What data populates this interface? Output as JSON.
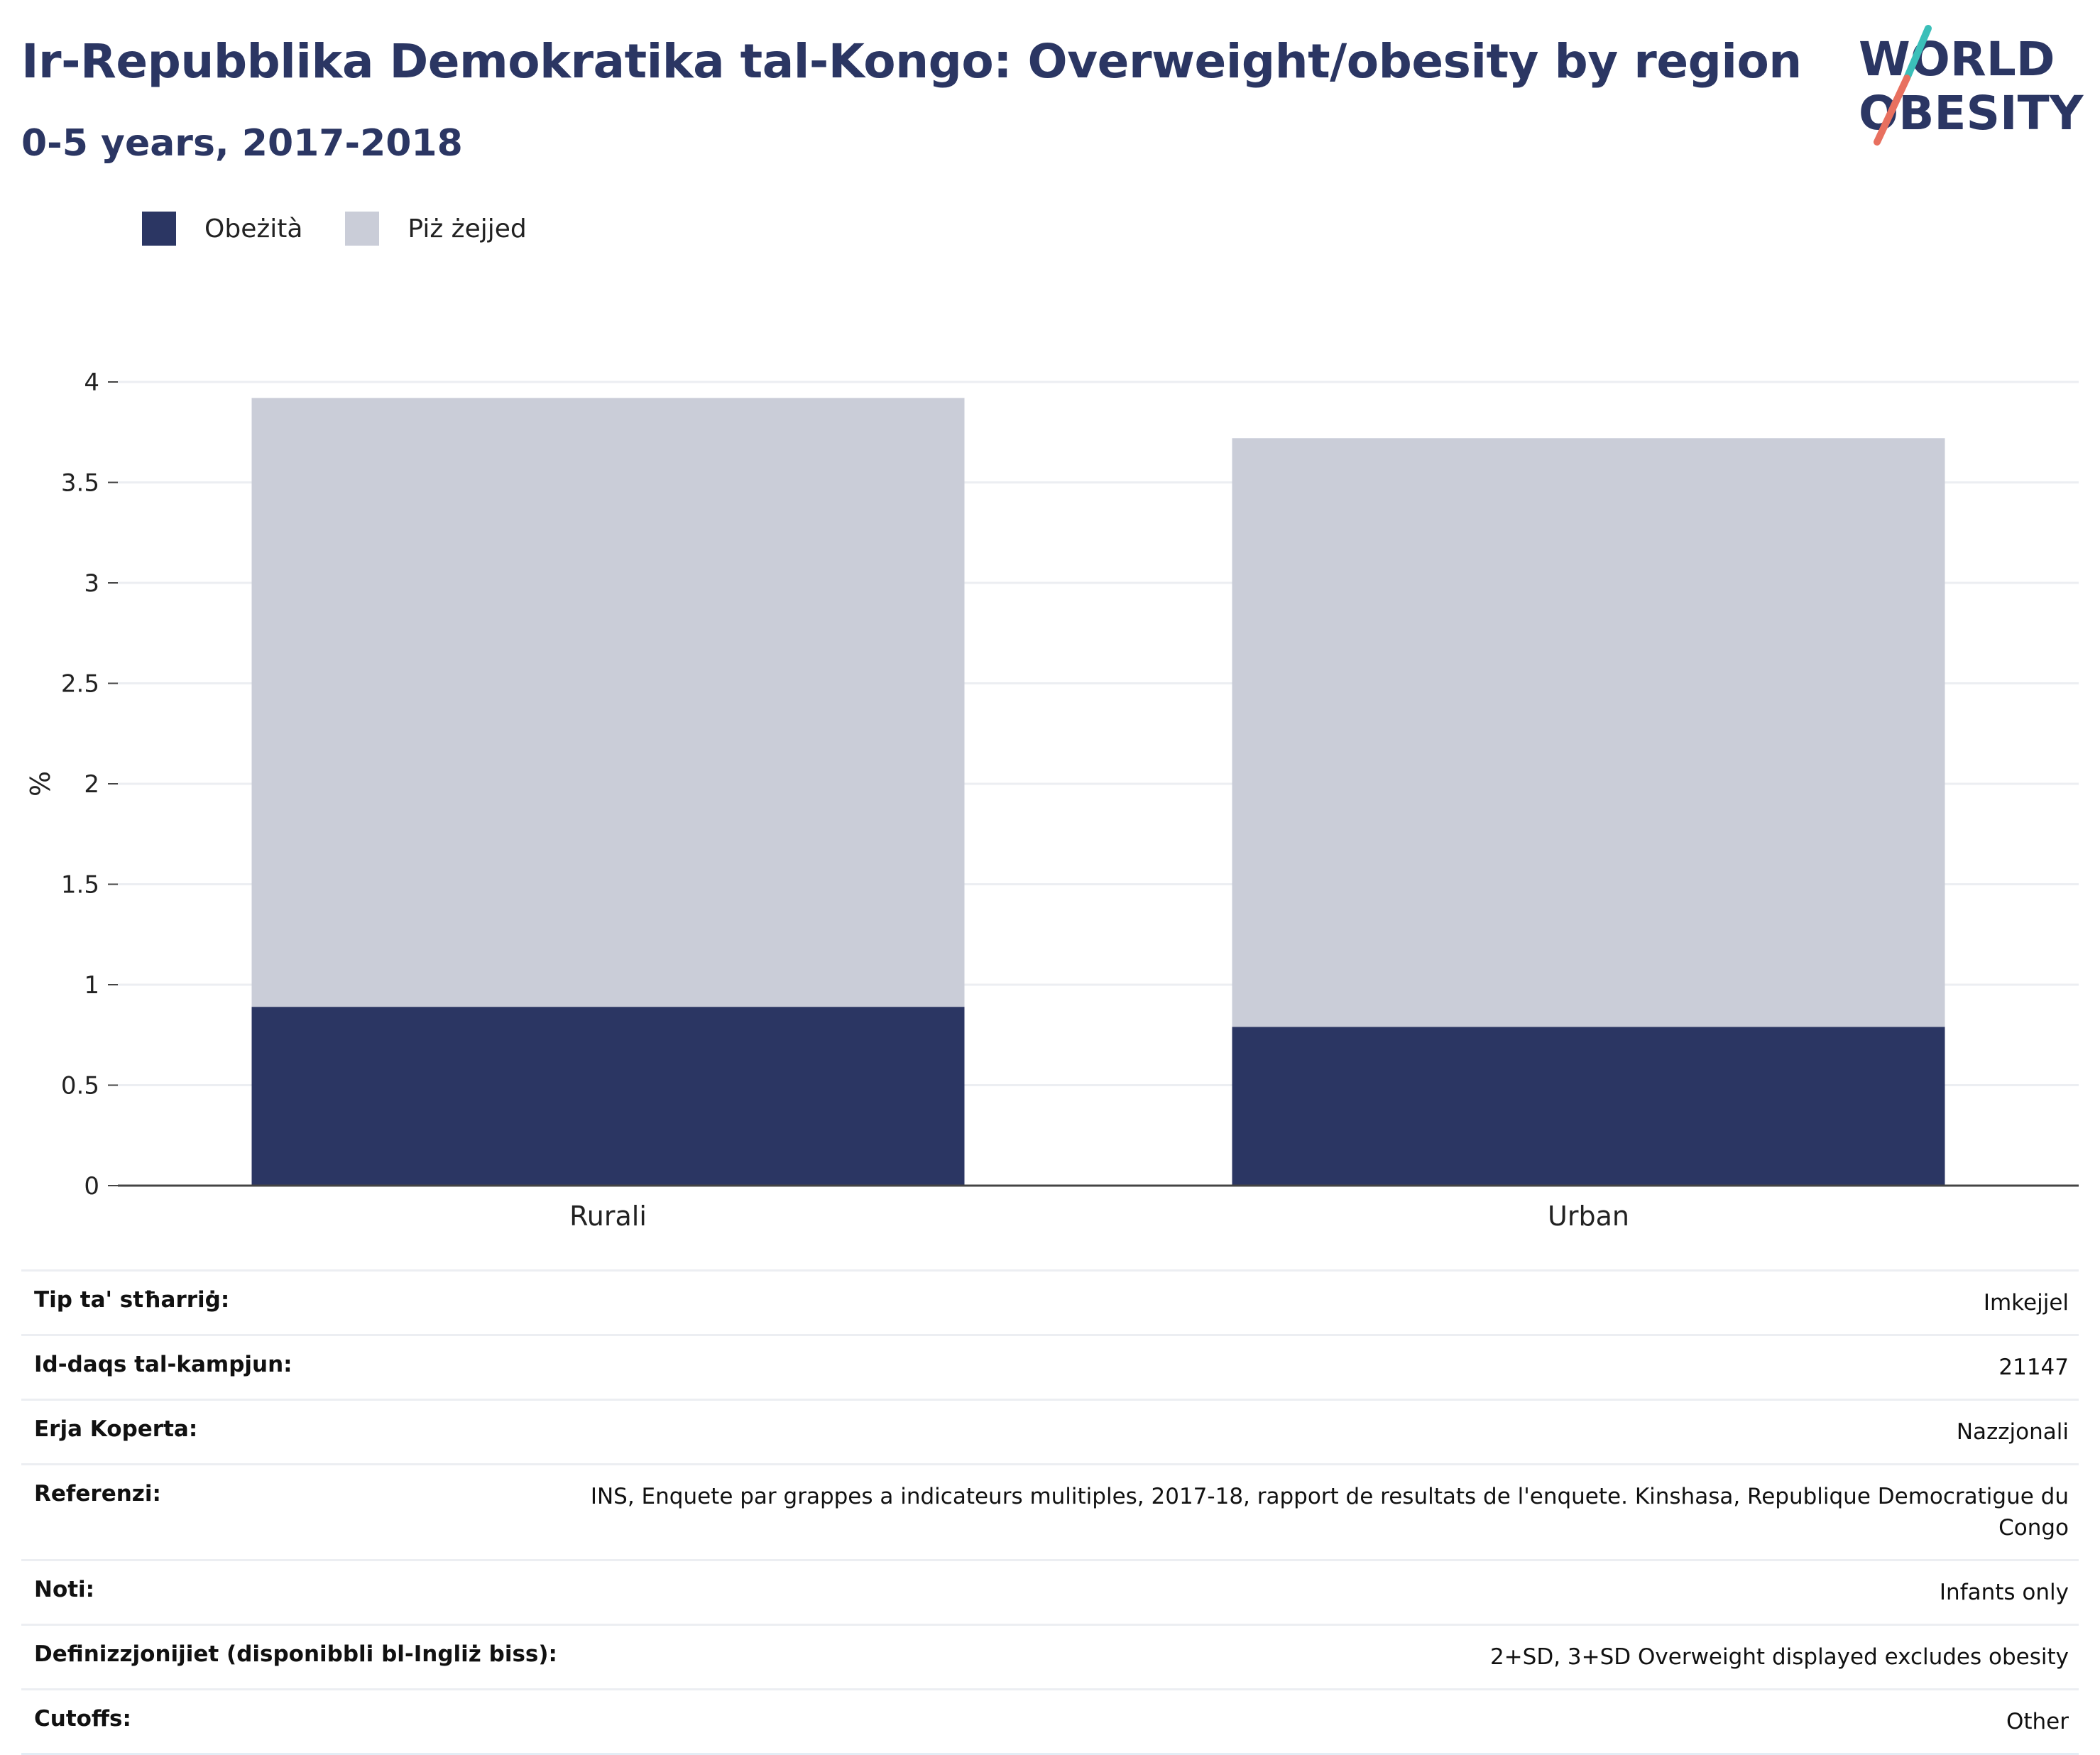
{
  "header": {
    "title": "Ir-Repubblika Demokratika tal-Kongo: Overweight/obesity by region",
    "subtitle": "0-5 years, 2017-2018"
  },
  "logo": {
    "line1": "WORLD",
    "line2": "OBESITY",
    "colors": {
      "text": "#2b3663",
      "slash_top": "#3bbfb9",
      "slash_bottom": "#e8705f"
    }
  },
  "legend": [
    {
      "label": "Obeżità",
      "color": "#2b3663"
    },
    {
      "label": "Piż żejjed",
      "color": "#cacdd8"
    }
  ],
  "chart_data": {
    "type": "bar",
    "stacked": true,
    "categories": [
      "Rurali",
      "Urban"
    ],
    "series": [
      {
        "name": "Obeżità",
        "color": "#2b3663",
        "values": [
          0.89,
          0.79
        ]
      },
      {
        "name": "Piż żejjed",
        "color": "#cacdd8",
        "values": [
          3.03,
          2.93
        ]
      }
    ],
    "ylabel": "%",
    "ylim": [
      0,
      4
    ],
    "yticks": [
      0,
      0.5,
      1,
      1.5,
      2,
      2.5,
      3,
      3.5,
      4
    ],
    "ytick_labels": [
      "0",
      "0.5",
      "1",
      "1.5",
      "2",
      "2.5",
      "3",
      "3.5",
      "4"
    ],
    "grid": true,
    "legend_position": "top-left"
  },
  "info_table": [
    {
      "label": "Tip ta' stħarriġ:",
      "value": "Imkejjel"
    },
    {
      "label": "Id-daqs tal-kampjun:",
      "value": "21147"
    },
    {
      "label": "Erja Koperta:",
      "value": "Nazzjonali"
    },
    {
      "label": "Referenzi:",
      "value": "INS, Enquete par grappes a indicateurs mulitiples, 2017-18, rapport de resultats de l'enquete. Kinshasa, Republique Democratigue du Congo"
    },
    {
      "label": "Noti:",
      "value": "Infants only"
    },
    {
      "label": "Definizzjonijiet (disponibbli bl-Ingliż biss):",
      "value": "2+SD, 3+SD Overweight displayed excludes obesity"
    },
    {
      "label": "Cutoffs:",
      "value": "Other"
    }
  ]
}
